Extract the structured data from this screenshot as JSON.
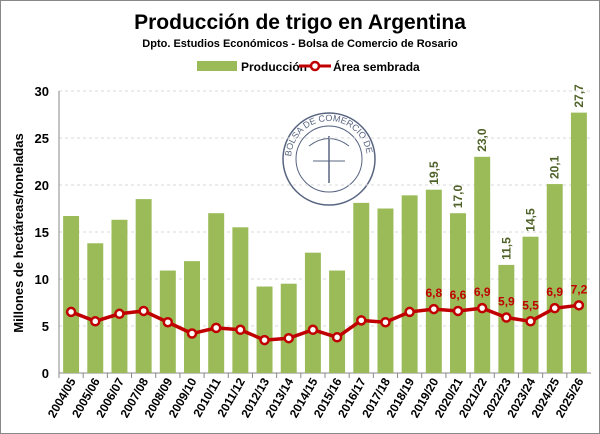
{
  "chart_data": {
    "type": "bar+line",
    "title": "Producción de trigo en Argentina",
    "subtitle": "Dpto. Estudios Económicos - Bolsa de Comercio de Rosario",
    "ylabel": "Millones de hectáreas/toneladas",
    "xlabel": "",
    "ylim": [
      0,
      30
    ],
    "yticks": [
      "0",
      "5",
      "10",
      "15",
      "20",
      "25",
      "30"
    ],
    "grid": true,
    "legend_placement": "top",
    "categories": [
      "2004/05",
      "2005/06",
      "2006/07",
      "2007/08",
      "2008/09",
      "2009/10",
      "2010/11",
      "2011/12",
      "2012/13",
      "2013/14",
      "2014/15",
      "2015/16",
      "2016/17",
      "2017/18",
      "2018/19",
      "2019/20",
      "2020/21",
      "2021/22",
      "2022/23",
      "2023/24",
      "2024/25",
      "2025/26"
    ],
    "series": [
      {
        "name": "Producción",
        "type": "bar",
        "color": "#9bbb59",
        "values": [
          16.7,
          13.8,
          16.3,
          18.5,
          10.9,
          11.9,
          17.0,
          15.5,
          9.2,
          9.5,
          12.8,
          10.9,
          18.1,
          17.5,
          18.9,
          19.5,
          17.0,
          23.0,
          11.5,
          14.5,
          20.1,
          27.7
        ],
        "labels": [
          "",
          "",
          "",
          "",
          "",
          "",
          "",
          "",
          "",
          "",
          "",
          "",
          "",
          "",
          "",
          "19,5",
          "17,0",
          "23,0",
          "11,5",
          "14,5",
          "20,1",
          "27,7"
        ]
      },
      {
        "name": "Área sembrada",
        "type": "line",
        "color": "#c00000",
        "values": [
          6.5,
          5.5,
          6.3,
          6.6,
          5.4,
          4.2,
          4.8,
          4.6,
          3.5,
          3.7,
          4.6,
          3.8,
          5.6,
          5.4,
          6.5,
          6.8,
          6.6,
          6.9,
          5.9,
          5.5,
          6.9,
          7.2
        ],
        "labels": [
          "",
          "",
          "",
          "",
          "",
          "",
          "",
          "",
          "",
          "",
          "",
          "",
          "",
          "",
          "",
          "6,8",
          "6,6",
          "6,9",
          "5,9",
          "5,5",
          "6,9",
          "7,2"
        ]
      }
    ],
    "watermark": "BOLSA DE COMERCIO DE ROSARIO"
  }
}
